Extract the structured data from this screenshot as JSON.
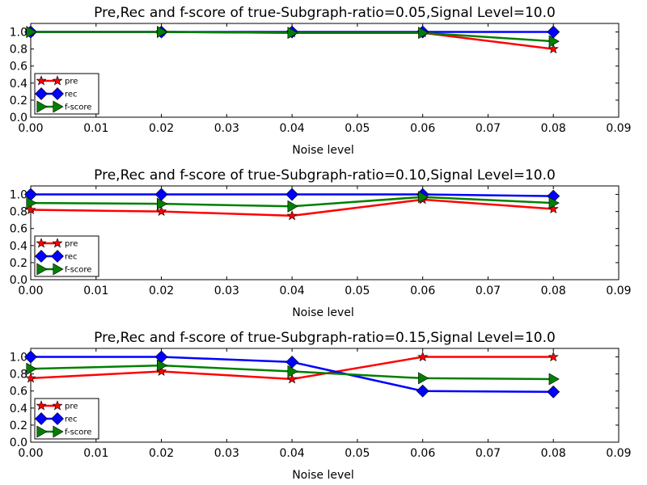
{
  "chart_data": [
    {
      "type": "line",
      "title": "Pre,Rec and f-score of true-Subgraph-ratio=0.05,Signal Level=10.0",
      "xlabel": "Noise level",
      "ylabel": "",
      "xlim": [
        0,
        0.09
      ],
      "ylim": [
        0,
        1.1
      ],
      "x": [
        0.0,
        0.02,
        0.04,
        0.06,
        0.08
      ],
      "series": [
        {
          "name": "pre",
          "color": "#ff0000",
          "marker": "star",
          "values": [
            1.0,
            1.0,
            0.99,
            0.99,
            0.8
          ]
        },
        {
          "name": "rec",
          "color": "#0000ff",
          "marker": "diamond",
          "values": [
            1.0,
            1.0,
            1.0,
            1.0,
            1.0
          ]
        },
        {
          "name": "f-score",
          "color": "#008000",
          "marker": "triangle-right",
          "values": [
            1.0,
            1.0,
            0.99,
            0.99,
            0.89
          ]
        }
      ],
      "legend": "lower-left"
    },
    {
      "type": "line",
      "title": "Pre,Rec and f-score of true-Subgraph-ratio=0.10,Signal Level=10.0",
      "xlabel": "Noise level",
      "ylabel": "",
      "xlim": [
        0,
        0.09
      ],
      "ylim": [
        0,
        1.1
      ],
      "x": [
        0.0,
        0.02,
        0.04,
        0.06,
        0.08
      ],
      "series": [
        {
          "name": "pre",
          "color": "#ff0000",
          "marker": "star",
          "values": [
            0.82,
            0.8,
            0.75,
            0.94,
            0.83
          ]
        },
        {
          "name": "rec",
          "color": "#0000ff",
          "marker": "diamond",
          "values": [
            1.0,
            1.0,
            1.0,
            1.0,
            0.98
          ]
        },
        {
          "name": "f-score",
          "color": "#008000",
          "marker": "triangle-right",
          "values": [
            0.9,
            0.89,
            0.86,
            0.97,
            0.9
          ]
        }
      ],
      "legend": "lower-left"
    },
    {
      "type": "line",
      "title": "Pre,Rec and f-score of true-Subgraph-ratio=0.15,Signal Level=10.0",
      "xlabel": "Noise level",
      "ylabel": "",
      "xlim": [
        0,
        0.09
      ],
      "ylim": [
        0,
        1.1
      ],
      "x": [
        0.0,
        0.02,
        0.04,
        0.06,
        0.08
      ],
      "series": [
        {
          "name": "pre",
          "color": "#ff0000",
          "marker": "star",
          "values": [
            0.75,
            0.83,
            0.74,
            1.0,
            1.0
          ]
        },
        {
          "name": "rec",
          "color": "#0000ff",
          "marker": "diamond",
          "values": [
            1.0,
            1.0,
            0.94,
            0.6,
            0.59
          ]
        },
        {
          "name": "f-score",
          "color": "#008000",
          "marker": "triangle-right",
          "values": [
            0.86,
            0.9,
            0.83,
            0.75,
            0.74
          ]
        }
      ],
      "legend": "lower-left"
    }
  ],
  "axes": {
    "x_ticks": [
      "0.00",
      "0.01",
      "0.02",
      "0.03",
      "0.04",
      "0.05",
      "0.06",
      "0.07",
      "0.08",
      "0.09"
    ],
    "y_ticks": [
      "0.0",
      "0.2",
      "0.4",
      "0.6",
      "0.8",
      "1.0"
    ]
  }
}
